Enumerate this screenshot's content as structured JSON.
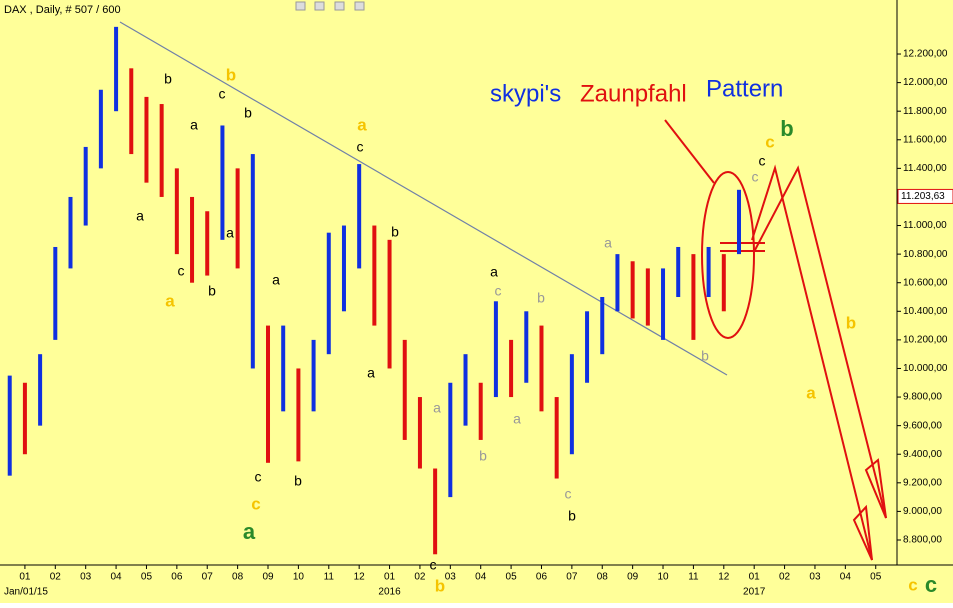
{
  "chart_data": {
    "type": "ohlc",
    "title": "DAX , Daily, # 507 / 600",
    "xlim": [
      -0.82,
      28.7
    ],
    "ylim": [
      8625,
      12480
    ],
    "xticks": [
      {
        "value": 0,
        "label": "01"
      },
      {
        "value": 1,
        "label": "02"
      },
      {
        "value": 2,
        "label": "03"
      },
      {
        "value": 3,
        "label": "04"
      },
      {
        "value": 4,
        "label": "05"
      },
      {
        "value": 5,
        "label": "06"
      },
      {
        "value": 6,
        "label": "07"
      },
      {
        "value": 7,
        "label": "08"
      },
      {
        "value": 8,
        "label": "09"
      },
      {
        "value": 9,
        "label": "10"
      },
      {
        "value": 10,
        "label": "11"
      },
      {
        "value": 11,
        "label": "12"
      },
      {
        "value": 12,
        "label": "01"
      },
      {
        "value": 13,
        "label": "02"
      },
      {
        "value": 14,
        "label": "03"
      },
      {
        "value": 15,
        "label": "04"
      },
      {
        "value": 16,
        "label": "05"
      },
      {
        "value": 17,
        "label": "06"
      },
      {
        "value": 18,
        "label": "07"
      },
      {
        "value": 19,
        "label": "08"
      },
      {
        "value": 20,
        "label": "09"
      },
      {
        "value": 21,
        "label": "10"
      },
      {
        "value": 22,
        "label": "11"
      },
      {
        "value": 23,
        "label": "12"
      },
      {
        "value": 24,
        "label": "01"
      },
      {
        "value": 25,
        "label": "02"
      },
      {
        "value": 26,
        "label": "03"
      },
      {
        "value": 27,
        "label": "04"
      },
      {
        "value": 28,
        "label": "05"
      }
    ],
    "x_period_labels": [
      {
        "value": 0,
        "label": "Jan/01/15"
      },
      {
        "value": 12,
        "label": "2016"
      },
      {
        "value": 24,
        "label": "2017"
      }
    ],
    "yticks": [
      {
        "value": 8800,
        "label": "8.800,00"
      },
      {
        "value": 9000,
        "label": "9.000,00"
      },
      {
        "value": 9200,
        "label": "9.200,00"
      },
      {
        "value": 9400,
        "label": "9.400,00"
      },
      {
        "value": 9600,
        "label": "9.600,00"
      },
      {
        "value": 9800,
        "label": "9.800,00"
      },
      {
        "value": 10000,
        "label": "10.000,00"
      },
      {
        "value": 10200,
        "label": "10.200,00"
      },
      {
        "value": 10400,
        "label": "10.400,00"
      },
      {
        "value": 10600,
        "label": "10.600,00"
      },
      {
        "value": 10800,
        "label": "10.800,00"
      },
      {
        "value": 11000,
        "label": "11.000,00"
      },
      {
        "value": 11200,
        "label": "11.200,00"
      },
      {
        "value": 11400,
        "label": "11.400,00"
      },
      {
        "value": 11600,
        "label": "11.600,00"
      },
      {
        "value": 11800,
        "label": "11.800,00"
      },
      {
        "value": 12000,
        "label": "12.000,00"
      },
      {
        "value": 12200,
        "label": "12.200,00"
      }
    ],
    "last_price": {
      "value": 11203.63,
      "label": "11.203,63"
    },
    "up_color": "#1030e0",
    "down_color": "#e01010",
    "background": "#ffff99",
    "x": [
      -0.5,
      0,
      0.5,
      1,
      1.5,
      2,
      2.5,
      3,
      3.5,
      4,
      4.5,
      5,
      5.5,
      6,
      6.5,
      7,
      7.5,
      8,
      8.5,
      9,
      9.5,
      10,
      10.5,
      11,
      11.5,
      12,
      12.5,
      13,
      13.5,
      14,
      14.5,
      15,
      15.5,
      16,
      16.5,
      17,
      17.5,
      18,
      18.5,
      19,
      19.5,
      20,
      20.5,
      21,
      21.5,
      22,
      22.5,
      23,
      23.5
    ],
    "high": [
      9950,
      9900,
      10100,
      10850,
      11200,
      11550,
      11950,
      12390,
      12100,
      11900,
      11850,
      11400,
      11200,
      11100,
      11700,
      11400,
      11500,
      10300,
      10300,
      10000,
      10200,
      10950,
      11000,
      11430,
      11000,
      10900,
      10200,
      9800,
      9300,
      9900,
      10100,
      9900,
      10470,
      10200,
      10400,
      10300,
      9800,
      10100,
      10400,
      10500,
      10800,
      10750,
      10700,
      10700,
      10850,
      10800,
      10850,
      10800,
      11250
    ],
    "low": [
      9250,
      9400,
      9600,
      10200,
      10700,
      11000,
      11400,
      11800,
      11500,
      11300,
      11200,
      10800,
      10600,
      10650,
      10900,
      10700,
      10000,
      9340,
      9700,
      9350,
      9700,
      10100,
      10400,
      10700,
      10300,
      10000,
      9500,
      9300,
      8700,
      9100,
      9600,
      9500,
      9800,
      9800,
      9900,
      9700,
      9230,
      9400,
      9900,
      10100,
      10400,
      10350,
      10300,
      10200,
      10500,
      10200,
      10500,
      10400,
      10800
    ],
    "headline": [
      {
        "text": "skypi's",
        "color": "#1030e0"
      },
      {
        "text": "Zaunpfahl",
        "color": "#e01010"
      },
      {
        "text": "Pattern",
        "color": "#1030e0"
      }
    ],
    "annotations": [
      {
        "text": "b",
        "color": "#000000"
      },
      {
        "text": "c",
        "color": "#000000"
      },
      {
        "text": "b",
        "color": "#000000"
      },
      {
        "text": "a",
        "color": "#000000"
      },
      {
        "text": "a",
        "color": "#000000"
      },
      {
        "text": "c",
        "color": "#000000"
      },
      {
        "text": "a",
        "color": "#000000"
      },
      {
        "text": "b",
        "color": "#000000"
      },
      {
        "text": "a",
        "color": "#000000"
      },
      {
        "text": "c",
        "color": "#000000"
      },
      {
        "text": "b",
        "color": "#000000"
      },
      {
        "text": "a",
        "color": "#000000"
      },
      {
        "text": "b",
        "color": "#000000"
      },
      {
        "text": "c",
        "color": "#000000"
      },
      {
        "text": "a",
        "color": "#000000"
      },
      {
        "text": "c",
        "color": "#000000"
      },
      {
        "text": "b",
        "color": "#000000"
      },
      {
        "text": "c",
        "color": "#000000"
      },
      {
        "text": "b",
        "color": "#f5c400"
      },
      {
        "text": "a",
        "color": "#f5c400"
      },
      {
        "text": "c",
        "color": "#f5c400"
      },
      {
        "text": "a",
        "color": "#f5c400"
      },
      {
        "text": "b",
        "color": "#f5c400"
      },
      {
        "text": "c",
        "color": "#f5c400"
      },
      {
        "text": "b",
        "color": "#f5c400"
      },
      {
        "text": "a",
        "color": "#f5c400"
      },
      {
        "text": "c",
        "color": "#f5c400"
      },
      {
        "text": "a",
        "color": "#2a8a2a"
      },
      {
        "text": "b",
        "color": "#2a8a2a"
      },
      {
        "text": "c",
        "color": "#2a8a2a"
      },
      {
        "text": "a",
        "color": "#999999"
      },
      {
        "text": "b",
        "color": "#999999"
      },
      {
        "text": "a",
        "color": "#999999"
      },
      {
        "text": "c",
        "color": "#999999"
      },
      {
        "text": "b",
        "color": "#999999"
      },
      {
        "text": "c",
        "color": "#999999"
      },
      {
        "text": "a",
        "color": "#999999"
      },
      {
        "text": "b",
        "color": "#999999"
      },
      {
        "text": "c",
        "color": "#999999"
      }
    ]
  }
}
